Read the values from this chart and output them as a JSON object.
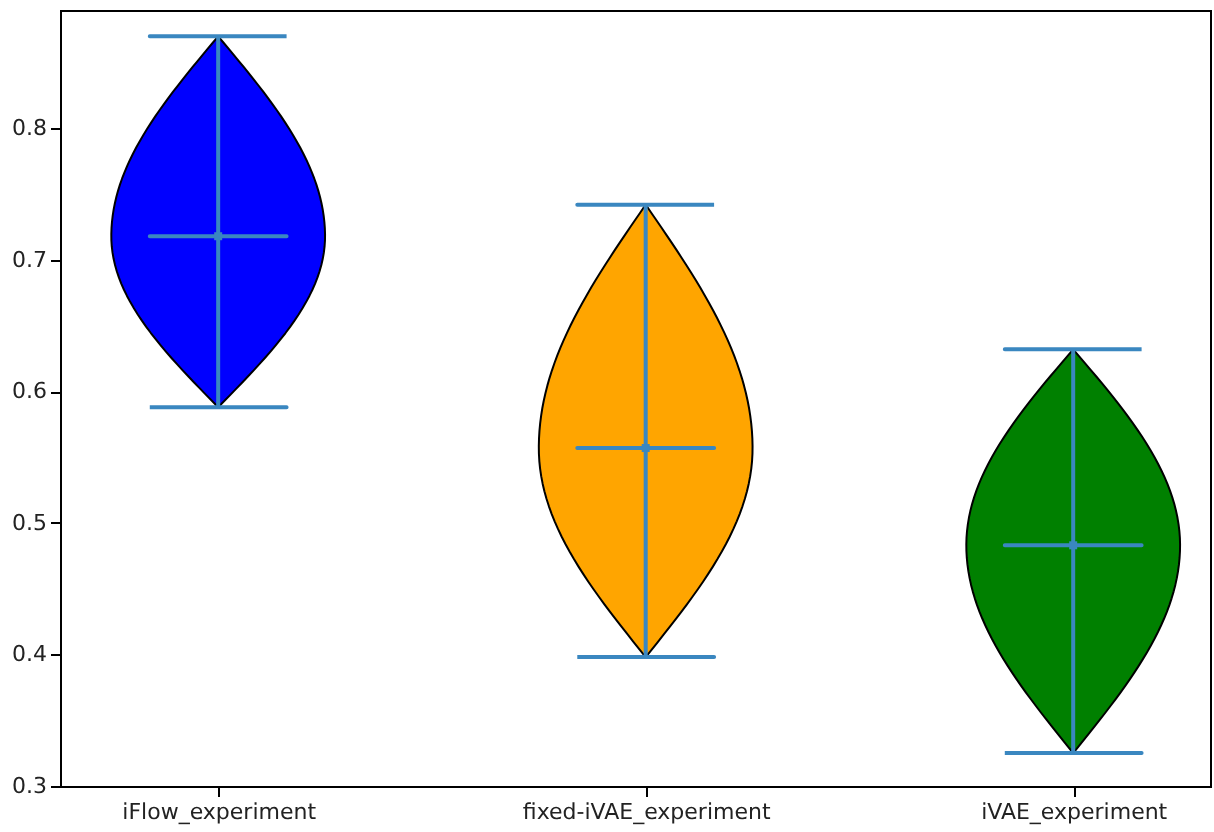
{
  "chart_data": {
    "type": "scatter",
    "categories": [
      "iFlow_experiment",
      "fixed-iVAE_experiment",
      "iVAE_experiment"
    ],
    "series": [
      {
        "color": "#3a87c0",
        "values": [
          0.718,
          0.557,
          0.483
        ],
        "errors": [
          [
            0.588,
            0.87
          ],
          [
            0.398,
            0.742
          ],
          [
            0.325,
            0.632
          ]
        ]
      }
    ],
    "marker": "square",
    "ylim": [
      0.3,
      0.89
    ],
    "yticks": [
      0.3,
      0.4,
      0.5,
      0.6,
      0.7,
      0.8
    ]
  }
}
